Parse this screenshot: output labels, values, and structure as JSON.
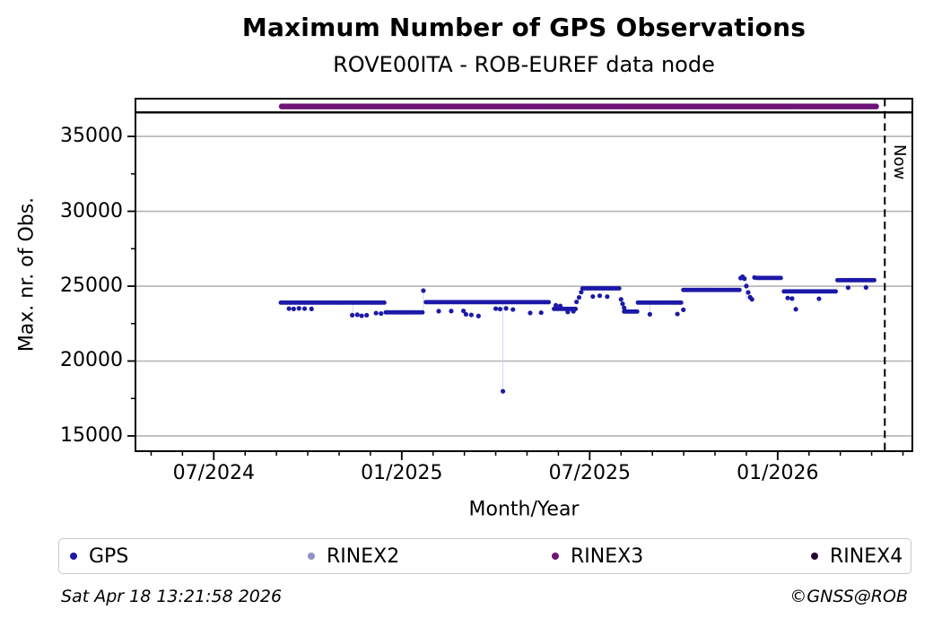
{
  "footer": {
    "timestamp": "Sat Apr 18 13:21:58 2026",
    "credit": "©GNSS@ROB"
  },
  "chart_data": {
    "type": "scatter",
    "title": "Maximum Number of GPS Observations",
    "subtitle": "ROVE00ITA - ROB-EUREF data node",
    "xlabel": "Month/Year",
    "ylabel": "Max. nr. of Obs.",
    "x_unit": "months since 2024-01-01 (7.0 = 07/2024)",
    "xlim": [
      4.5,
      29.3
    ],
    "ylim": [
      13980,
      37520
    ],
    "grid": "horizontal-major",
    "legend_position": "bottom",
    "colors": {
      "grid": "#b3b3b3",
      "frame": "#000000",
      "connector": "#ccd2ee"
    },
    "yticks": {
      "major": [
        15000,
        20000,
        25000,
        30000,
        35000
      ],
      "minor": [
        17500,
        22500,
        27500,
        32500
      ]
    },
    "xticks": {
      "major": [
        {
          "m": 7,
          "label": "07/2024"
        },
        {
          "m": 13,
          "label": "01/2025"
        },
        {
          "m": 19,
          "label": "07/2025"
        },
        {
          "m": 25,
          "label": "01/2026"
        }
      ],
      "minor_every_month": true
    },
    "now_line": {
      "m": 28.42,
      "label": "Now",
      "style": "dashed"
    },
    "separator_line": {
      "value": 36600,
      "color": "#000000"
    },
    "series": [
      {
        "name": "GPS",
        "color": "#1c19a8",
        "marker": "dot",
        "runs": [
          [
            9.14,
            12.49,
            23900
          ],
          [
            12.49,
            13.69,
            23250
          ],
          [
            13.77,
            17.69,
            23930
          ],
          [
            17.86,
            18.56,
            23480
          ],
          [
            18.77,
            19.97,
            24850
          ],
          [
            20.1,
            20.54,
            23300
          ],
          [
            20.54,
            21.97,
            23900
          ],
          [
            21.99,
            23.8,
            24750
          ],
          [
            24.34,
            25.11,
            25550
          ],
          [
            25.2,
            26.91,
            24650
          ],
          [
            26.91,
            28.14,
            25400
          ]
        ],
        "dots": [
          [
            9.4,
            23500
          ],
          [
            9.55,
            23480
          ],
          [
            9.72,
            23520
          ],
          [
            9.9,
            23500
          ],
          [
            10.12,
            23480
          ],
          [
            11.42,
            23060
          ],
          [
            11.58,
            23090
          ],
          [
            11.72,
            23020
          ],
          [
            11.88,
            23060
          ],
          [
            12.18,
            23200
          ],
          [
            12.34,
            23170
          ],
          [
            13.69,
            24700
          ],
          [
            14.18,
            23330
          ],
          [
            14.58,
            23340
          ],
          [
            14.97,
            23350
          ],
          [
            15.05,
            23120
          ],
          [
            15.22,
            23080
          ],
          [
            15.45,
            23010
          ],
          [
            16.0,
            23500
          ],
          [
            16.14,
            23470
          ],
          [
            16.33,
            23520
          ],
          [
            16.55,
            23440
          ],
          [
            16.23,
            17980
          ],
          [
            17.1,
            23210
          ],
          [
            17.45,
            23230
          ],
          [
            17.92,
            23720
          ],
          [
            18.06,
            23680
          ],
          [
            18.3,
            23280
          ],
          [
            18.48,
            23320
          ],
          [
            18.58,
            23950
          ],
          [
            18.66,
            24250
          ],
          [
            18.73,
            24600
          ],
          [
            19.1,
            24310
          ],
          [
            19.32,
            24360
          ],
          [
            19.56,
            24300
          ],
          [
            20.0,
            24120
          ],
          [
            20.05,
            23820
          ],
          [
            20.1,
            23550
          ],
          [
            20.92,
            23120
          ],
          [
            21.8,
            23140
          ],
          [
            21.99,
            23420
          ],
          [
            23.82,
            25540
          ],
          [
            23.88,
            25630
          ],
          [
            23.94,
            25500
          ],
          [
            24.0,
            25010
          ],
          [
            24.06,
            24580
          ],
          [
            24.12,
            24260
          ],
          [
            24.18,
            24120
          ],
          [
            24.26,
            25580
          ],
          [
            25.32,
            24210
          ],
          [
            25.46,
            24170
          ],
          [
            25.58,
            23460
          ],
          [
            26.32,
            24160
          ],
          [
            27.25,
            24900
          ],
          [
            27.82,
            24910
          ]
        ],
        "connectors": [
          [
            11.45,
            23900,
            23060
          ],
          [
            13.69,
            23250,
            24700
          ],
          [
            16.23,
            23930,
            17980
          ],
          [
            20.92,
            23900,
            23120
          ],
          [
            24.0,
            25500,
            24120
          ]
        ]
      },
      {
        "name": "RINEX2",
        "color": "#8f93c9",
        "marker": "dot",
        "runs": [],
        "dots": []
      },
      {
        "name": "RINEX3",
        "color": "#6e1478",
        "marker": "dot",
        "line_width": 6.5,
        "runs": [
          [
            9.17,
            28.2,
            37000
          ]
        ],
        "dots": []
      },
      {
        "name": "RINEX4",
        "color": "#26082e",
        "marker": "dot",
        "runs": [],
        "dots": []
      }
    ]
  }
}
